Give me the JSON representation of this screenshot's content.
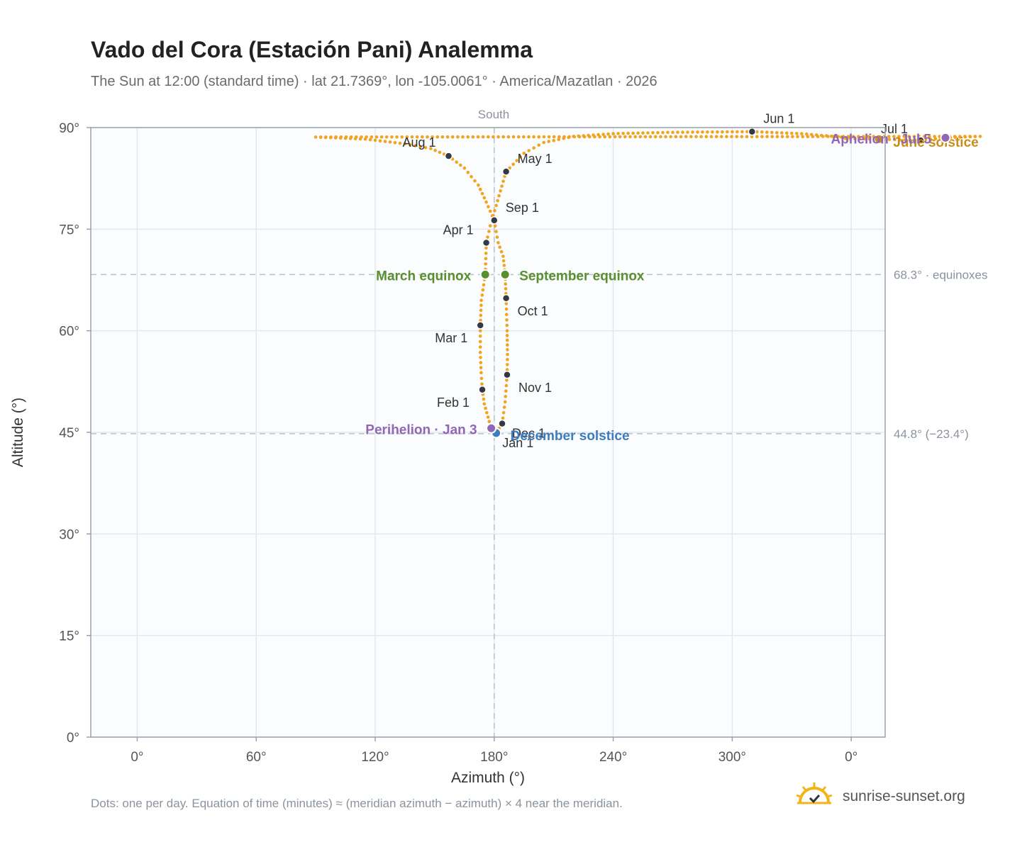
{
  "header": {
    "title": "Vado del Cora (Estación Pani) Analemma",
    "subtitle": "The Sun at 12:00 (standard time) · lat 21.7369°, lon -105.0061° · America/Mazatlan · 2026"
  },
  "footer": {
    "note": "Dots: one per day. Equation of time (minutes) ≈ (meridian azimuth − azimuth) × 4 near the meridian.",
    "brand": "sunrise-sunset.org"
  },
  "colors": {
    "curve": "#f2a31f",
    "month_marker": "#343a45",
    "equinox": "#5a8f2f",
    "solstice_december": "#3d7cbf",
    "solstice_june": "#c98d18",
    "apsis": "#9167b5",
    "plot_bg": "#fafcfe",
    "grid": "#e4e8ee",
    "guide": "#b6c2cc"
  },
  "chart_data": {
    "type": "scatter",
    "title": "Vado del Cora (Estación Pani) Analemma",
    "xlabel": "Azimuth (°)",
    "ylabel": "Altitude (°)",
    "x_ticks": [
      "0°",
      "60°",
      "120°",
      "180°",
      "240°",
      "300°",
      "0°"
    ],
    "y_ticks": [
      "0°",
      "15°",
      "30°",
      "45°",
      "60°",
      "75°",
      "90°"
    ],
    "ylim": [
      0,
      90
    ],
    "x_range": [
      -23.4,
      377.1
    ],
    "grid": true,
    "south_label": "South",
    "reference_lines": [
      {
        "label": "68.3° · equinoxes",
        "altitude": 68.3
      },
      {
        "label": "44.8° (−23.4°)",
        "altitude": 44.8
      }
    ],
    "month_markers": [
      {
        "label": "Jan 1",
        "azimuth": 180.5,
        "altitude": 44.9
      },
      {
        "label": "Feb 1",
        "azimuth": 174.0,
        "altitude": 51.3
      },
      {
        "label": "Mar 1",
        "azimuth": 173.0,
        "altitude": 60.8
      },
      {
        "label": "Apr 1",
        "azimuth": 176.0,
        "altitude": 73.0
      },
      {
        "label": "May 1",
        "azimuth": 186.0,
        "altitude": 83.5
      },
      {
        "label": "Jun 1",
        "azimuth": 310.0,
        "altitude": 89.4
      },
      {
        "label": "Jul 1",
        "azimuth": 35.0,
        "altitude": 88.1
      },
      {
        "label": "Aug 1",
        "azimuth": 157.0,
        "altitude": 85.8
      },
      {
        "label": "Sep 1",
        "azimuth": 180.0,
        "altitude": 76.3
      },
      {
        "label": "Oct 1",
        "azimuth": 186.0,
        "altitude": 64.8
      },
      {
        "label": "Nov 1",
        "azimuth": 186.5,
        "altitude": 53.5
      },
      {
        "label": "Dec 1",
        "azimuth": 184.0,
        "altitude": 46.3
      }
    ],
    "events": [
      {
        "label": "March equinox",
        "azimuth": 175.5,
        "altitude": 68.3
      },
      {
        "label": "September equinox",
        "azimuth": 185.5,
        "altitude": 68.3
      },
      {
        "label": "December solstice",
        "azimuth": 181.0,
        "altitude": 44.9
      },
      {
        "label": "June solstice",
        "azimuth": 14.0,
        "altitude": 88.3
      },
      {
        "label": "Perihelion · Jan 3",
        "azimuth": 178.5,
        "altitude": 45.6
      },
      {
        "label": "Aphelion · Jul 5",
        "azimuth": 47.5,
        "altitude": 88.5
      }
    ],
    "series": [
      {
        "points": [
          [
            180.5,
            44.9
          ],
          [
            177.5,
            46.6
          ],
          [
            175.0,
            49.2
          ],
          [
            174.0,
            51.3
          ],
          [
            173.4,
            53.8
          ],
          [
            173.0,
            56.8
          ],
          [
            173.0,
            60.8
          ],
          [
            173.5,
            64.5
          ],
          [
            175.5,
            68.3
          ],
          [
            176.0,
            73.0
          ],
          [
            178.0,
            75.5
          ],
          [
            181.0,
            78.5
          ],
          [
            186.0,
            83.5
          ],
          [
            195.0,
            86.2
          ],
          [
            205.0,
            87.8
          ],
          [
            220.0,
            88.7
          ],
          [
            240.0,
            89.1
          ],
          [
            270.0,
            89.3
          ],
          [
            310.0,
            89.4
          ],
          [
            335.0,
            89.1
          ],
          [
            355.0,
            88.6
          ],
          [
            -3.0,
            88.4
          ],
          [
            14.0,
            88.3
          ],
          [
            35.0,
            88.1
          ],
          [
            47.5,
            88.5
          ],
          [
            65.0,
            88.7
          ],
          [
            90.0,
            88.6
          ],
          [
            115.0,
            88.3
          ],
          [
            135.0,
            87.6
          ],
          [
            148.0,
            86.9
          ],
          [
            157.0,
            85.8
          ],
          [
            165.0,
            84.0
          ],
          [
            172.0,
            81.5
          ],
          [
            176.0,
            79.0
          ],
          [
            180.0,
            76.3
          ],
          [
            182.0,
            73.0
          ],
          [
            184.5,
            71.0
          ],
          [
            185.5,
            68.3
          ],
          [
            186.0,
            64.8
          ],
          [
            186.5,
            60.0
          ],
          [
            186.7,
            56.5
          ],
          [
            186.5,
            53.5
          ],
          [
            185.5,
            49.5
          ],
          [
            184.0,
            46.3
          ],
          [
            181.0,
            44.9
          ]
        ]
      }
    ]
  }
}
